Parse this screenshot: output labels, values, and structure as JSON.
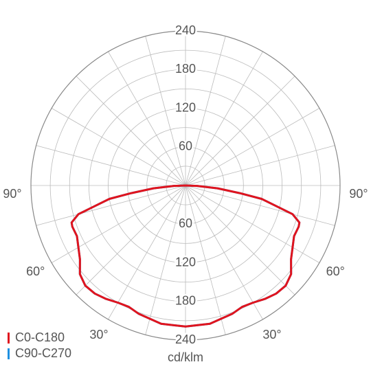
{
  "chart_data": {
    "type": "polar",
    "unit_label": "cd/klm",
    "rlim": [
      0,
      240
    ],
    "rticks": [
      60,
      120,
      180,
      240
    ],
    "rminor": [
      30,
      90,
      150,
      210
    ],
    "angle_grid_step": 15,
    "angle_ticks": [
      {
        "value": -90,
        "label": "90°"
      },
      {
        "value": -60,
        "label": "60°"
      },
      {
        "value": -30,
        "label": "30°"
      },
      {
        "value": 30,
        "label": "30°"
      },
      {
        "value": 60,
        "label": "60°"
      },
      {
        "value": 90,
        "label": "90°"
      }
    ],
    "x": [
      -90,
      -88,
      -85,
      -82,
      -80,
      -75,
      -72,
      -70,
      -65,
      -60,
      -55,
      -50,
      -45,
      -40,
      -35,
      -30,
      -25,
      -20,
      -10,
      0,
      10,
      20,
      25,
      30,
      35,
      40,
      45,
      50,
      55,
      60,
      65,
      70,
      72,
      75,
      80,
      82,
      85,
      88,
      90
    ],
    "series": [
      {
        "name": "C90-C270",
        "color": "#1e90e0",
        "values": [
          0,
          18,
          50,
          85,
          120,
          172,
          186,
          187,
          186,
          192,
          200,
          214,
          220,
          219,
          215,
          210,
          208,
          212,
          218,
          219,
          218,
          212,
          208,
          210,
          215,
          219,
          220,
          214,
          200,
          192,
          186,
          187,
          186,
          172,
          120,
          85,
          50,
          18,
          0
        ]
      },
      {
        "name": "C0-C180",
        "color": "#e0141e",
        "values": [
          0,
          18,
          50,
          85,
          120,
          172,
          186,
          187,
          186,
          192,
          200,
          214,
          220,
          219,
          215,
          210,
          208,
          212,
          218,
          219,
          218,
          212,
          208,
          210,
          215,
          219,
          220,
          214,
          200,
          192,
          186,
          187,
          186,
          172,
          120,
          85,
          50,
          18,
          0
        ]
      }
    ]
  }
}
